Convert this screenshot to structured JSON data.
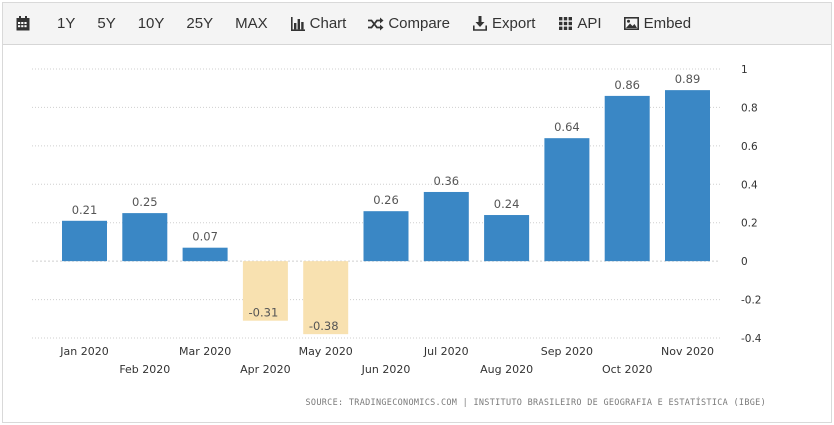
{
  "toolbar": {
    "calendar_icon": "calendar-icon",
    "items": [
      {
        "label": "1Y"
      },
      {
        "label": "5Y"
      },
      {
        "label": "10Y"
      },
      {
        "label": "25Y"
      },
      {
        "label": "MAX"
      },
      {
        "label": "Chart",
        "icon": "bar-chart-icon"
      },
      {
        "label": "Compare",
        "icon": "shuffle-icon"
      },
      {
        "label": "Export",
        "icon": "download-icon"
      },
      {
        "label": "API",
        "icon": "grid-icon"
      },
      {
        "label": "Embed",
        "icon": "image-icon"
      }
    ]
  },
  "chart_data": {
    "type": "bar",
    "categories": [
      "Jan 2020",
      "Feb 2020",
      "Mar 2020",
      "Apr 2020",
      "May 2020",
      "Jun 2020",
      "Jul 2020",
      "Aug 2020",
      "Sep 2020",
      "Oct 2020",
      "Nov 2020"
    ],
    "values": [
      0.21,
      0.25,
      0.07,
      -0.31,
      -0.38,
      0.26,
      0.36,
      0.24,
      0.64,
      0.86,
      0.89
    ],
    "data_labels": [
      "0.21",
      "0.25",
      "0.07",
      "-0.31",
      "-0.38",
      "0.26",
      "0.36",
      "0.24",
      "0.64",
      "0.86",
      "0.89"
    ],
    "ylim": [
      -0.4,
      1
    ],
    "yticks": [
      -0.4,
      -0.2,
      0,
      0.2,
      0.4,
      0.6,
      0.8,
      1
    ],
    "ytick_labels": [
      "-0.4",
      "-0.2",
      "0",
      "0.2",
      "0.4",
      "0.6",
      "0.8",
      "1"
    ],
    "y_axis_position": "right",
    "grid": true,
    "legend": "none",
    "colors": {
      "positive": "#3a87c5",
      "negative": "#f8e1b0"
    }
  },
  "source": "SOURCE: TRADINGECONOMICS.COM | INSTITUTO BRASILEIRO DE GEOGRAFIA E ESTATÍSTICA (IBGE)"
}
